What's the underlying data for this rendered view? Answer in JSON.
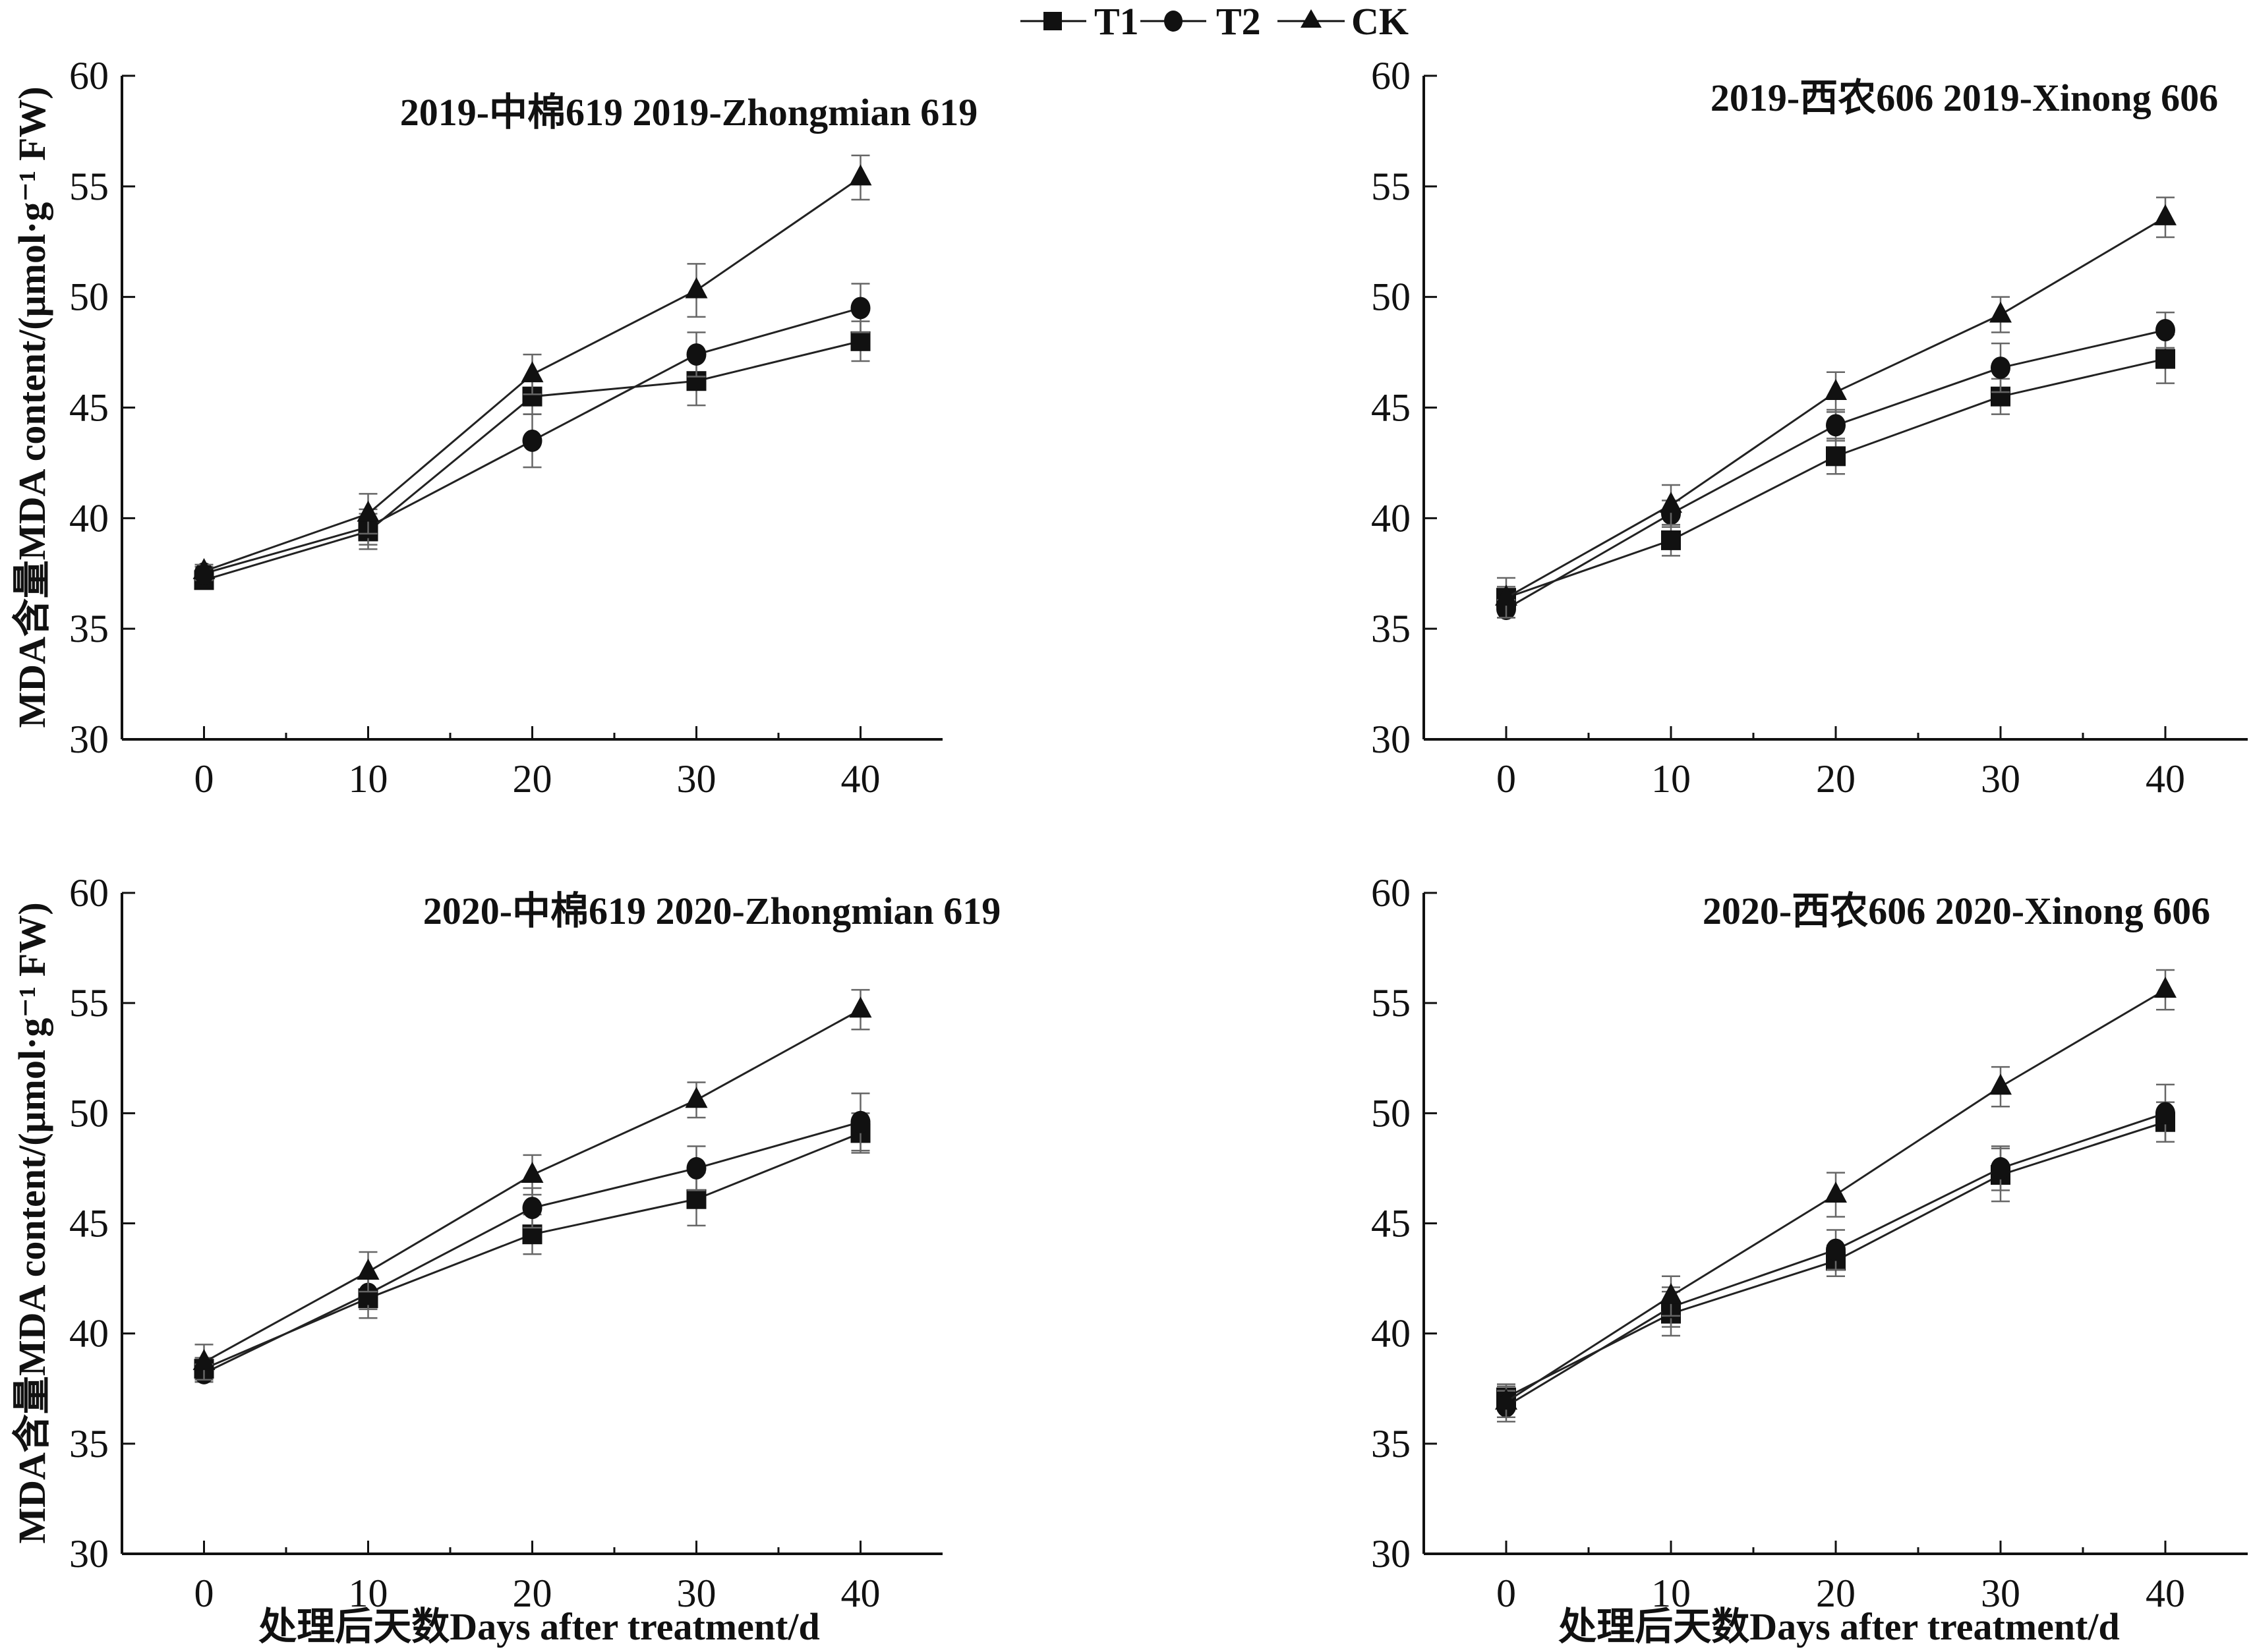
{
  "legend": {
    "items": [
      {
        "label": "T1",
        "marker": "square"
      },
      {
        "label": "T2",
        "marker": "circle"
      },
      {
        "label": "CK",
        "marker": "triangle"
      }
    ]
  },
  "y_axis_title": "MDA含量MDA content/(μmol·g⁻¹ FW)",
  "x_axis_title": "处理后天数Days after treatment/d",
  "chart_data": [
    {
      "type": "line",
      "title": "2019-中棉619 2019-Zhongmian 619",
      "xlabel": "",
      "ylabel": "MDA含量MDA content/(μmol·g⁻¹ FW)",
      "x": [
        0,
        10,
        20,
        30,
        40
      ],
      "x_ticks": [
        "0",
        "10",
        "20",
        "30",
        "40"
      ],
      "xlim": [
        -5,
        45
      ],
      "ylim": [
        30,
        60
      ],
      "y_ticks": [
        "30",
        "35",
        "40",
        "45",
        "50",
        "55",
        "60"
      ],
      "grid": false,
      "error_bars": true,
      "series": [
        {
          "name": "T1",
          "marker": "square",
          "values": [
            37.2,
            39.4,
            45.5,
            46.2,
            48.0
          ],
          "errors": [
            0.4,
            0.8,
            0.8,
            1.1,
            0.9
          ]
        },
        {
          "name": "T2",
          "marker": "circle",
          "values": [
            37.5,
            39.6,
            43.5,
            47.4,
            49.5
          ],
          "errors": [
            0.3,
            0.8,
            1.2,
            1.0,
            1.1
          ]
        },
        {
          "name": "CK",
          "marker": "triangle",
          "values": [
            37.6,
            40.2,
            46.5,
            50.3,
            55.4
          ],
          "errors": [
            0.3,
            0.9,
            0.9,
            1.2,
            1.0
          ]
        }
      ]
    },
    {
      "type": "line",
      "title": "2019-西农606 2019-Xinong 606",
      "xlabel": "",
      "ylabel": "",
      "x": [
        0,
        10,
        20,
        30,
        40
      ],
      "x_ticks": [
        "0",
        "10",
        "20",
        "30",
        "40"
      ],
      "xlim": [
        -5,
        45
      ],
      "ylim": [
        30,
        60
      ],
      "y_ticks": [
        "30",
        "35",
        "40",
        "45",
        "50",
        "55",
        "60"
      ],
      "grid": false,
      "error_bars": true,
      "series": [
        {
          "name": "T1",
          "marker": "square",
          "values": [
            36.4,
            39.0,
            42.8,
            45.5,
            47.2
          ],
          "errors": [
            0.5,
            0.7,
            0.8,
            0.8,
            1.1
          ]
        },
        {
          "name": "T2",
          "marker": "circle",
          "values": [
            35.9,
            40.2,
            44.2,
            46.8,
            48.5
          ],
          "errors": [
            0.4,
            0.6,
            0.7,
            1.1,
            0.8
          ]
        },
        {
          "name": "CK",
          "marker": "triangle",
          "values": [
            36.4,
            40.6,
            45.7,
            49.2,
            53.6
          ],
          "errors": [
            0.9,
            0.9,
            0.9,
            0.8,
            0.9
          ]
        }
      ]
    },
    {
      "type": "line",
      "title": "2020-中棉619 2020-Zhongmian 619",
      "xlabel": "处理后天数Days after treatment/d",
      "ylabel": "MDA含量MDA content/(μmol·g⁻¹ FW)",
      "x": [
        0,
        10,
        20,
        30,
        40
      ],
      "x_ticks": [
        "0",
        "10",
        "20",
        "30",
        "40"
      ],
      "xlim": [
        -5,
        45
      ],
      "ylim": [
        30,
        60
      ],
      "y_ticks": [
        "30",
        "35",
        "40",
        "45",
        "50",
        "55",
        "60"
      ],
      "grid": false,
      "error_bars": true,
      "series": [
        {
          "name": "T1",
          "marker": "square",
          "values": [
            38.4,
            41.6,
            44.5,
            46.1,
            49.1
          ],
          "errors": [
            0.5,
            0.9,
            0.9,
            1.2,
            0.9
          ]
        },
        {
          "name": "T2",
          "marker": "circle",
          "values": [
            38.2,
            41.8,
            45.7,
            47.5,
            49.6
          ],
          "errors": [
            0.4,
            0.7,
            0.9,
            1.0,
            1.3
          ]
        },
        {
          "name": "CK",
          "marker": "triangle",
          "values": [
            38.7,
            42.8,
            47.2,
            50.6,
            54.7
          ],
          "errors": [
            0.8,
            0.9,
            0.9,
            0.8,
            0.9
          ]
        }
      ]
    },
    {
      "type": "line",
      "title": "2020-西农606 2020-Xinong 606",
      "xlabel": "处理后天数Days after treatment/d",
      "ylabel": "",
      "x": [
        0,
        10,
        20,
        30,
        40
      ],
      "x_ticks": [
        "0",
        "10",
        "20",
        "30",
        "40"
      ],
      "xlim": [
        -5,
        45
      ],
      "ylim": [
        30,
        60
      ],
      "y_ticks": [
        "30",
        "35",
        "40",
        "45",
        "50",
        "55",
        "60"
      ],
      "grid": false,
      "error_bars": true,
      "series": [
        {
          "name": "T1",
          "marker": "square",
          "values": [
            37.1,
            40.9,
            43.3,
            47.2,
            49.6
          ],
          "errors": [
            0.6,
            1.0,
            0.7,
            1.2,
            0.9
          ]
        },
        {
          "name": "T2",
          "marker": "circle",
          "values": [
            36.7,
            41.2,
            43.8,
            47.5,
            50.0
          ],
          "errors": [
            0.7,
            0.9,
            0.9,
            1.0,
            1.3
          ]
        },
        {
          "name": "CK",
          "marker": "triangle",
          "values": [
            36.9,
            41.7,
            46.3,
            51.2,
            55.6
          ],
          "errors": [
            0.7,
            0.9,
            1.0,
            0.9,
            0.9
          ]
        }
      ]
    }
  ]
}
